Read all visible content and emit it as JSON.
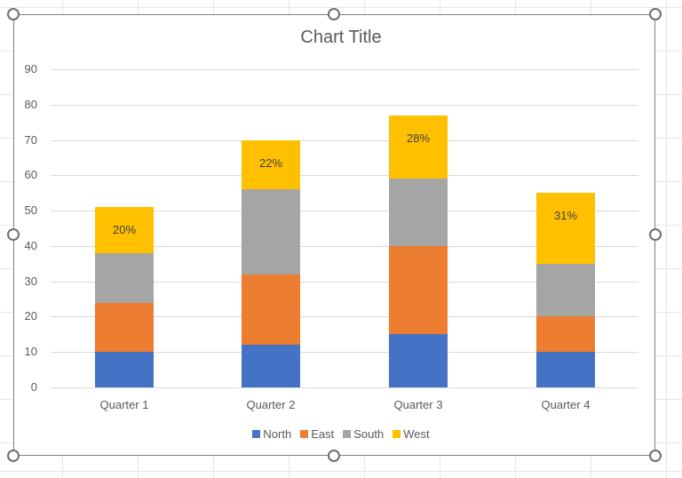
{
  "chart_data": {
    "type": "bar",
    "stacked": true,
    "title": "Chart Title",
    "xlabel": "",
    "ylabel": "",
    "ylim": [
      0,
      90
    ],
    "yticks": [
      0,
      10,
      20,
      30,
      40,
      50,
      60,
      70,
      80,
      90
    ],
    "grid": true,
    "legend_position": "bottom",
    "categories": [
      "Quarter 1",
      "Quarter 2",
      "Quarter 3",
      "Quarter 4"
    ],
    "series": [
      {
        "name": "North",
        "color": "#4472C4",
        "values": [
          10,
          12,
          15,
          10
        ]
      },
      {
        "name": "East",
        "color": "#ED7D31",
        "values": [
          14,
          20,
          25,
          10
        ]
      },
      {
        "name": "South",
        "color": "#A5A5A5",
        "values": [
          14,
          24,
          19,
          15
        ]
      },
      {
        "name": "West",
        "color": "#FFC000",
        "values": [
          13,
          14,
          18,
          20
        ]
      }
    ],
    "annotations": {
      "series": "West",
      "labels": [
        "20%",
        "22%",
        "28%",
        "31%"
      ]
    }
  },
  "legend": {
    "items": [
      "North",
      "East",
      "South",
      "West"
    ]
  }
}
